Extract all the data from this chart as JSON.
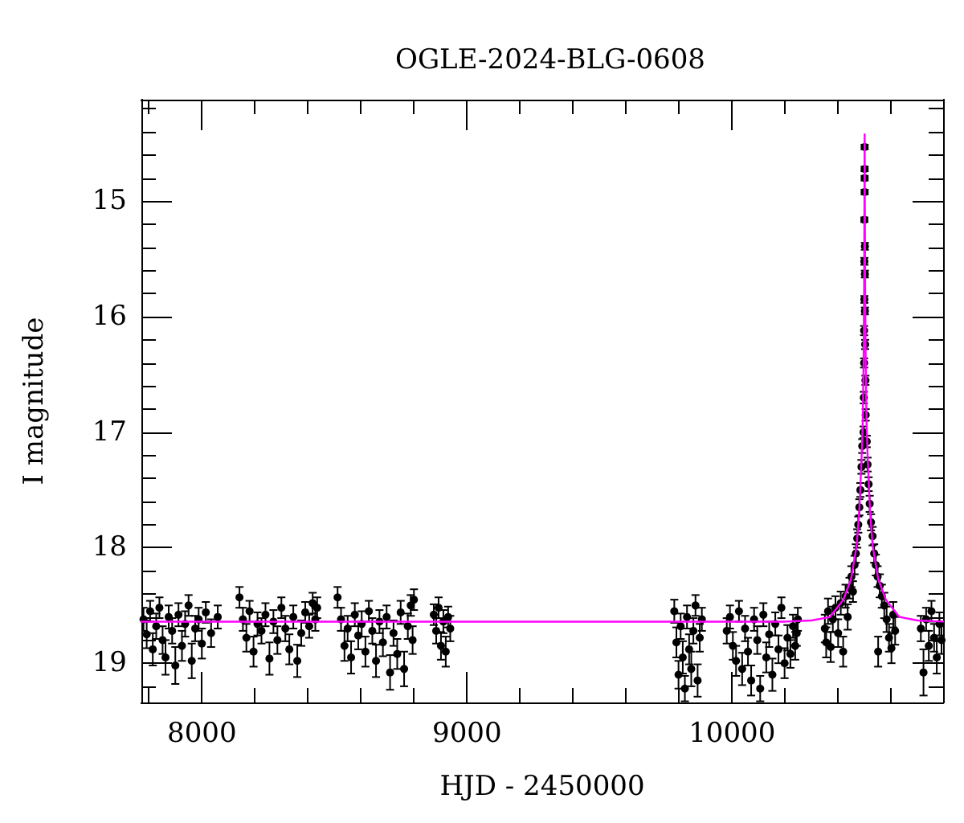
{
  "chart_data": {
    "type": "scatter",
    "title": "OGLE-2024-BLG-0608",
    "xlabel": "HJD - 2450000",
    "ylabel": "I magnitude",
    "xlim": [
      7772,
      10796
    ],
    "ylim": [
      19.34,
      14.12
    ],
    "xticks": [
      {
        "value": 7800,
        "label": null
      },
      8000,
      {
        "value": 8200,
        "label": null
      },
      {
        "value": 8400,
        "label": null
      },
      {
        "value": 8600,
        "label": null
      },
      {
        "value": 8800,
        "label": null
      },
      9000,
      {
        "value": 9200,
        "label": null
      },
      {
        "value": 9400,
        "label": null
      },
      {
        "value": 9600,
        "label": null
      },
      {
        "value": 9800,
        "label": null
      },
      10000,
      {
        "value": 10200,
        "label": null
      },
      {
        "value": 10400,
        "label": null
      },
      {
        "value": 10600,
        "label": null
      }
    ],
    "yticks": [
      {
        "value": 14.2,
        "label": null
      },
      {
        "value": 14.4,
        "label": null
      },
      {
        "value": 14.6,
        "label": null
      },
      {
        "value": 14.8,
        "label": null
      },
      15,
      {
        "value": 15.2,
        "label": null
      },
      {
        "value": 15.4,
        "label": null
      },
      {
        "value": 15.6,
        "label": null
      },
      {
        "value": 15.8,
        "label": null
      },
      16,
      {
        "value": 16.2,
        "label": null
      },
      {
        "value": 16.4,
        "label": null
      },
      {
        "value": 16.6,
        "label": null
      },
      {
        "value": 16.8,
        "label": null
      },
      17,
      {
        "value": 17.2,
        "label": null
      },
      {
        "value": 17.4,
        "label": null
      },
      {
        "value": 17.6,
        "label": null
      },
      {
        "value": 17.8,
        "label": null
      },
      18,
      {
        "value": 18.2,
        "label": null
      },
      {
        "value": 18.4,
        "label": null
      },
      {
        "value": 18.6,
        "label": null
      },
      {
        "value": 18.8,
        "label": null
      },
      19,
      {
        "value": 19.2,
        "label": null
      }
    ],
    "marker": "circle",
    "series": [
      {
        "color": "#000000",
        "x": [
          7780,
          7792,
          7805,
          7815,
          7828,
          7840,
          7852,
          7863,
          7875,
          7888,
          7900,
          7912,
          7925,
          7937,
          7950,
          7962,
          7975,
          7988,
          8000,
          8015,
          8035,
          8060,
          8142,
          8155,
          8168,
          8180,
          8195,
          8210,
          8225,
          8240,
          8255,
          8270,
          8285,
          8300,
          8315,
          8330,
          8345,
          8360,
          8375,
          8390,
          8405,
          8418,
          8428,
          8435,
          8512,
          8525,
          8538,
          8550,
          8563,
          8577,
          8590,
          8603,
          8617,
          8630,
          8643,
          8657,
          8670,
          8683,
          8697,
          8710,
          8723,
          8737,
          8750,
          8763,
          8777,
          8788,
          8795,
          8800,
          8875,
          8884,
          8893,
          8902,
          8911,
          8920,
          8929,
          8937,
          9782,
          9790,
          9798,
          9806,
          9814,
          9822,
          9830,
          9838,
          9846,
          9854,
          9862,
          9870,
          9878,
          9886,
          9980,
          9992,
          10003,
          10015,
          10026,
          10038,
          10049,
          10060,
          10072,
          10083,
          10095,
          10106,
          10118,
          10129,
          10140,
          10152,
          10163,
          10175,
          10186,
          10198,
          10209,
          10220,
          10230,
          10238,
          10244,
          10248,
          10350,
          10355,
          10362,
          10372,
          10380,
          10390,
          10400,
          10410,
          10419,
          10428,
          10436,
          10443,
          10450,
          10456,
          10462,
          10467,
          10472,
          10476,
          10480,
          10484,
          10488,
          10491,
          10500,
          10500,
          10500,
          10500,
          10499,
          10501,
          10499,
          10501,
          10499,
          10501,
          10498,
          10502,
          10498,
          10503,
          10497,
          10504,
          10496,
          10508,
          10511,
          10515,
          10519,
          10524,
          10530,
          10536,
          10542,
          10549,
          10551,
          10557,
          10565,
          10574,
          10583,
          10592,
          10601,
          10608,
          10615,
          10712,
          10722,
          10732,
          10742,
          10752,
          10762,
          10772,
          10782,
          10790
        ],
        "values": [
          18.62,
          18.75,
          18.55,
          18.88,
          18.68,
          18.52,
          18.8,
          18.95,
          18.6,
          18.72,
          19.02,
          18.58,
          18.85,
          18.66,
          18.5,
          18.98,
          18.7,
          18.62,
          18.83,
          18.56,
          18.74,
          18.6,
          18.43,
          18.62,
          18.78,
          18.55,
          18.9,
          18.66,
          18.72,
          18.58,
          18.96,
          18.64,
          18.8,
          18.52,
          18.7,
          18.88,
          18.6,
          18.98,
          18.74,
          18.56,
          18.68,
          18.48,
          18.62,
          18.52,
          18.43,
          18.62,
          18.85,
          18.7,
          18.95,
          18.58,
          18.76,
          18.66,
          18.9,
          18.55,
          18.72,
          18.98,
          18.64,
          18.82,
          18.6,
          19.08,
          18.74,
          18.92,
          18.56,
          19.05,
          18.68,
          18.5,
          18.8,
          18.45,
          18.58,
          18.72,
          18.52,
          18.85,
          18.64,
          18.9,
          18.6,
          18.7,
          18.55,
          18.82,
          19.1,
          18.68,
          18.95,
          19.22,
          18.6,
          18.88,
          19.05,
          18.72,
          18.5,
          19.15,
          18.78,
          18.62,
          18.72,
          18.6,
          18.85,
          18.98,
          18.55,
          19.05,
          18.7,
          18.9,
          19.15,
          18.62,
          18.8,
          19.22,
          18.58,
          18.95,
          18.75,
          19.1,
          18.66,
          18.88,
          18.52,
          19.0,
          18.78,
          18.92,
          18.68,
          18.85,
          18.74,
          18.62,
          18.7,
          18.82,
          18.55,
          18.86,
          18.62,
          18.52,
          18.74,
          18.48,
          18.9,
          18.42,
          18.6,
          18.35,
          18.25,
          18.38,
          18.15,
          18.05,
          17.92,
          17.8,
          17.65,
          17.5,
          17.3,
          17.12,
          14.53,
          14.72,
          14.8,
          14.92,
          15.16,
          15.39,
          15.52,
          15.63,
          15.85,
          15.95,
          16.12,
          16.24,
          16.4,
          16.55,
          16.7,
          16.85,
          17.0,
          17.08,
          17.28,
          17.45,
          17.62,
          17.78,
          17.9,
          18.05,
          18.15,
          18.25,
          18.9,
          18.33,
          18.42,
          18.5,
          18.62,
          18.78,
          18.87,
          18.58,
          18.72,
          18.7,
          19.08,
          18.62,
          18.85,
          18.55,
          18.78,
          18.95,
          18.66,
          18.8
        ],
        "errors": [
          0.1,
          0.12,
          0.09,
          0.14,
          0.11,
          0.09,
          0.12,
          0.15,
          0.1,
          0.11,
          0.16,
          0.1,
          0.13,
          0.11,
          0.09,
          0.15,
          0.11,
          0.1,
          0.13,
          0.09,
          0.12,
          0.1,
          0.09,
          0.1,
          0.12,
          0.09,
          0.13,
          0.1,
          0.11,
          0.1,
          0.14,
          0.1,
          0.12,
          0.09,
          0.11,
          0.13,
          0.1,
          0.14,
          0.11,
          0.09,
          0.1,
          0.09,
          0.1,
          0.09,
          0.09,
          0.1,
          0.13,
          0.11,
          0.14,
          0.1,
          0.12,
          0.11,
          0.13,
          0.09,
          0.11,
          0.14,
          0.1,
          0.12,
          0.1,
          0.15,
          0.11,
          0.13,
          0.1,
          0.15,
          0.11,
          0.09,
          0.12,
          0.09,
          0.09,
          0.11,
          0.09,
          0.12,
          0.1,
          0.13,
          0.09,
          0.11,
          0.1,
          0.13,
          0.12,
          0.11,
          0.14,
          0.11,
          0.1,
          0.13,
          0.15,
          0.11,
          0.09,
          0.14,
          0.12,
          0.1,
          0.11,
          0.1,
          0.12,
          0.13,
          0.09,
          0.14,
          0.11,
          0.12,
          0.13,
          0.1,
          0.12,
          0.11,
          0.1,
          0.13,
          0.11,
          0.14,
          0.1,
          0.12,
          0.09,
          0.13,
          0.11,
          0.12,
          0.1,
          0.12,
          0.11,
          0.1,
          0.12,
          0.13,
          0.11,
          0.13,
          0.11,
          0.1,
          0.12,
          0.1,
          0.13,
          0.1,
          0.11,
          0.09,
          0.09,
          0.09,
          0.08,
          0.08,
          0.08,
          0.07,
          0.07,
          0.06,
          0.06,
          0.06,
          0.02,
          0.02,
          0.02,
          0.02,
          0.02,
          0.03,
          0.03,
          0.03,
          0.03,
          0.03,
          0.04,
          0.04,
          0.04,
          0.04,
          0.05,
          0.05,
          0.05,
          0.05,
          0.06,
          0.06,
          0.07,
          0.07,
          0.08,
          0.08,
          0.09,
          0.09,
          0.13,
          0.1,
          0.1,
          0.11,
          0.11,
          0.12,
          0.13,
          0.11,
          0.12,
          0.11,
          0.2,
          0.1,
          0.13,
          0.09,
          0.12,
          0.14,
          0.1,
          0.12
        ]
      },
      {
        "type": "line",
        "color": "#ff00ff",
        "marker": "none",
        "line_style": "solid",
        "x": [
          7772,
          10200,
          10300,
          10369,
          10420,
          10449,
          10470,
          10480,
          10488,
          10493,
          10496,
          10498,
          10499,
          10500,
          10501,
          10502,
          10504,
          10507,
          10512,
          10520,
          10530,
          10551,
          10580,
          10631,
          10700,
          10796
        ],
        "values": [
          18.64,
          18.64,
          18.63,
          18.6,
          18.45,
          18.27,
          17.98,
          17.67,
          17.25,
          16.9,
          16.4,
          15.8,
          15.2,
          14.42,
          15.2,
          15.8,
          16.4,
          16.9,
          17.25,
          17.67,
          17.98,
          18.27,
          18.45,
          18.6,
          18.63,
          18.64
        ]
      }
    ]
  }
}
